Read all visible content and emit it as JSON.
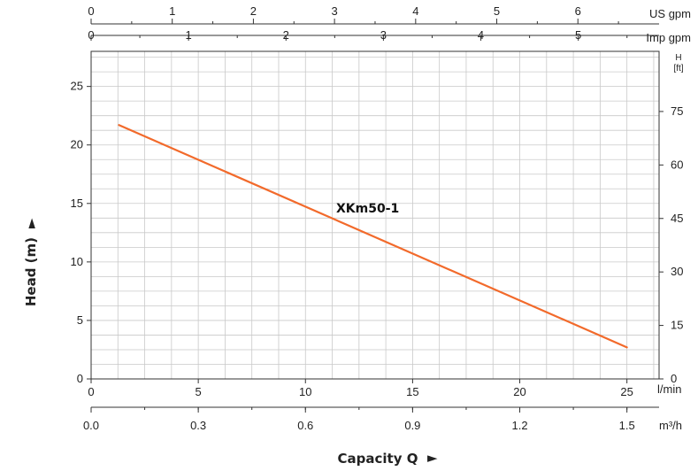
{
  "chart_data": {
    "type": "line",
    "ylabel": "Head (m)",
    "xlabel": "Capacity Q",
    "axis_arrow": "►",
    "x_unit": "l/min",
    "x_unit_m3h": "m³/h",
    "top_axis_us_label": "US gpm",
    "top_axis_imp_label": "Imp gpm",
    "right_axis_label_top": "H",
    "right_axis_label_unit": "[ft]",
    "xlim": [
      0,
      26.5
    ],
    "ylim": [
      0,
      28
    ],
    "grid": true,
    "x_ticks": [
      "0",
      "5",
      "10",
      "15",
      "20",
      "25"
    ],
    "x_ticks_m3h": [
      "0.0",
      "0.3",
      "0.6",
      "0.9",
      "1.2",
      "1.5"
    ],
    "y_ticks": [
      "0",
      "5",
      "10",
      "15",
      "20",
      "25"
    ],
    "right_ticks_ft": [
      "0",
      "15",
      "30",
      "45",
      "60",
      "75"
    ],
    "us_gpm_ticks": [
      "0",
      "1",
      "2",
      "3",
      "4",
      "5",
      "6"
    ],
    "imp_gpm_ticks": [
      "0",
      "1",
      "2",
      "3",
      "4",
      "5"
    ],
    "series": [
      {
        "name": "XKm50-1",
        "color": "#f26a2b",
        "x": [
          1.3,
          25
        ],
        "y": [
          21.7,
          2.7
        ]
      }
    ]
  }
}
